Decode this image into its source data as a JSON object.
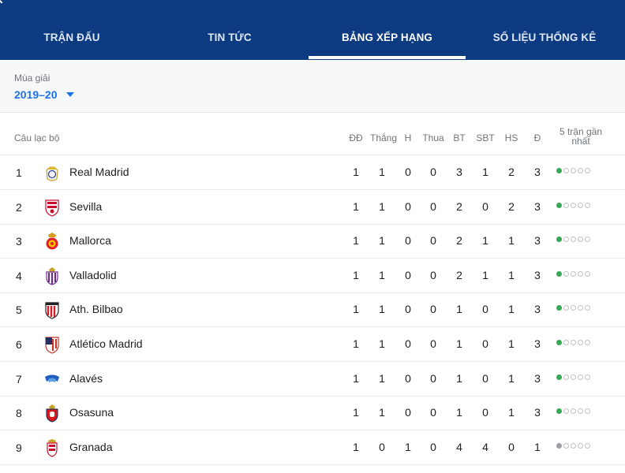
{
  "tabs": [
    {
      "label": "TRẬN ĐẤU",
      "active": false
    },
    {
      "label": "TIN TỨC",
      "active": false
    },
    {
      "label": "BẢNG XẾP HẠNG",
      "active": true
    },
    {
      "label": "SỐ LIỆU THỐNG KÊ",
      "active": false
    }
  ],
  "season": {
    "label": "Mùa giải",
    "value": "2019–20"
  },
  "table": {
    "headers": {
      "club": "Câu lạc bộ",
      "stats": [
        "ĐĐ",
        "Thắng",
        "H",
        "Thua",
        "BT",
        "SBT",
        "HS",
        "Đ"
      ],
      "last5_line1": "5 trận gần",
      "last5_line2": "nhất"
    },
    "rows": [
      {
        "pos": "1",
        "team": "Real Madrid",
        "crest": "real-madrid-crest-icon",
        "stats": [
          "1",
          "1",
          "0",
          "0",
          "3",
          "1",
          "2",
          "3"
        ],
        "last5": [
          "W",
          "",
          "",
          "",
          ""
        ]
      },
      {
        "pos": "2",
        "team": "Sevilla",
        "crest": "sevilla-crest-icon",
        "stats": [
          "1",
          "1",
          "0",
          "0",
          "2",
          "0",
          "2",
          "3"
        ],
        "last5": [
          "W",
          "",
          "",
          "",
          ""
        ]
      },
      {
        "pos": "3",
        "team": "Mallorca",
        "crest": "mallorca-crest-icon",
        "stats": [
          "1",
          "1",
          "0",
          "0",
          "2",
          "1",
          "1",
          "3"
        ],
        "last5": [
          "W",
          "",
          "",
          "",
          ""
        ]
      },
      {
        "pos": "4",
        "team": "Valladolid",
        "crest": "valladolid-crest-icon",
        "stats": [
          "1",
          "1",
          "0",
          "0",
          "2",
          "1",
          "1",
          "3"
        ],
        "last5": [
          "W",
          "",
          "",
          "",
          ""
        ]
      },
      {
        "pos": "5",
        "team": "Ath. Bilbao",
        "crest": "athletic-bilbao-crest-icon",
        "stats": [
          "1",
          "1",
          "0",
          "0",
          "1",
          "0",
          "1",
          "3"
        ],
        "last5": [
          "W",
          "",
          "",
          "",
          ""
        ]
      },
      {
        "pos": "6",
        "team": "Atlético Madrid",
        "crest": "atletico-madrid-crest-icon",
        "stats": [
          "1",
          "1",
          "0",
          "0",
          "1",
          "0",
          "1",
          "3"
        ],
        "last5": [
          "W",
          "",
          "",
          "",
          ""
        ]
      },
      {
        "pos": "7",
        "team": "Alavés",
        "crest": "alaves-crest-icon",
        "stats": [
          "1",
          "1",
          "0",
          "0",
          "1",
          "0",
          "1",
          "3"
        ],
        "last5": [
          "W",
          "",
          "",
          "",
          ""
        ]
      },
      {
        "pos": "8",
        "team": "Osasuna",
        "crest": "osasuna-crest-icon",
        "stats": [
          "1",
          "1",
          "0",
          "0",
          "1",
          "0",
          "1",
          "3"
        ],
        "last5": [
          "W",
          "",
          "",
          "",
          ""
        ]
      },
      {
        "pos": "9",
        "team": "Granada",
        "crest": "granada-crest-icon",
        "stats": [
          "1",
          "0",
          "1",
          "0",
          "4",
          "4",
          "0",
          "1"
        ],
        "last5": [
          "D",
          "",
          "",
          "",
          ""
        ]
      }
    ]
  },
  "colors": {
    "header_bg": "#0d3b82",
    "accent": "#1a73e8",
    "win": "#34a853",
    "draw": "#9aa0a6"
  }
}
